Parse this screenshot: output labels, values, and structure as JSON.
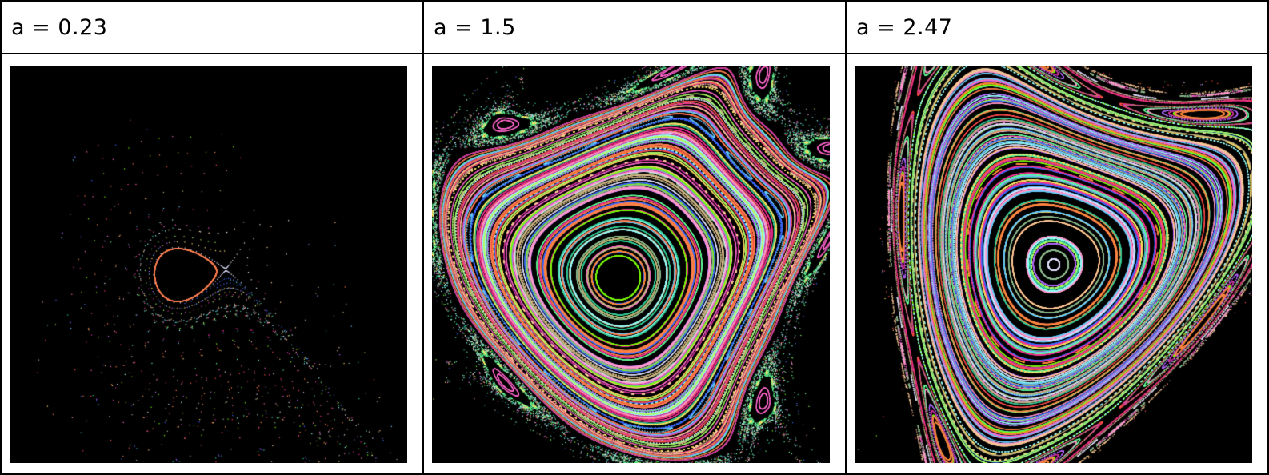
{
  "panels": [
    {
      "label": "a = 0.23",
      "a": 0.23
    },
    {
      "label": "a = 1.5",
      "a": 1.5
    },
    {
      "label": "a = 2.47",
      "a": 2.47
    }
  ],
  "colors": {
    "background": "#000000",
    "border": "#000000",
    "page": "#ffffff"
  }
}
